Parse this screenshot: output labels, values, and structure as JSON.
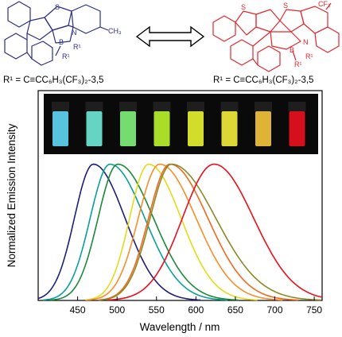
{
  "structures": {
    "left": {
      "atoms": {
        "sulfur": "S",
        "nitrogen": "N",
        "boron": "B",
        "r1_a": "R¹",
        "r1_b": "R¹",
        "methyl": "CH₃"
      },
      "caption": "R¹ = C≡CC₆H₃(CF₃)₂-3,5",
      "color": "#2b2e86"
    },
    "right": {
      "atoms": {
        "sulfur_a": "S",
        "sulfur_b": "S",
        "nitrogen": "N",
        "boron": "B",
        "r1_a": "R¹",
        "r1_b": "R¹",
        "cf3": "CF₃"
      },
      "caption": "R¹ = C≡CC₆H₃(CF₃)₂-3,5",
      "color": "#e3262d"
    }
  },
  "vial_colors": [
    "#5ed4f2",
    "#6fe6d2",
    "#7ff07a",
    "#b8f02e",
    "#e4ef2e",
    "#f0ea3a",
    "#f2c23a",
    "#e8101e"
  ],
  "chart_data": {
    "type": "line",
    "xlabel": "Wavelength / nm",
    "ylabel": "Normalized Emission Intensity",
    "xlim": [
      400,
      760
    ],
    "ylim": [
      0,
      1.05
    ],
    "xticks": [
      450,
      500,
      550,
      600,
      650,
      700,
      750
    ],
    "grid": false,
    "series": [
      {
        "color": "#1c1f7a",
        "peak": 470,
        "wl": 24,
        "wr": 40
      },
      {
        "color": "#0a9f9a",
        "peak": 491,
        "wl": 25,
        "wr": 44
      },
      {
        "color": "#1a8a3a",
        "peak": 501,
        "wl": 25,
        "wr": 45
      },
      {
        "color": "#e5da1a",
        "peak": 540,
        "wl": 24,
        "wr": 41
      },
      {
        "color": "#f58f2a",
        "peak": 554,
        "wl": 27,
        "wr": 46
      },
      {
        "color": "#ee6a1f",
        "peak": 567,
        "wl": 27,
        "wr": 48
      },
      {
        "color": "#8a8a26",
        "peak": 569,
        "wl": 27,
        "wr": 56
      },
      {
        "color": "#e8101e",
        "peak": 623,
        "wl": 40,
        "wr": 50
      }
    ]
  }
}
